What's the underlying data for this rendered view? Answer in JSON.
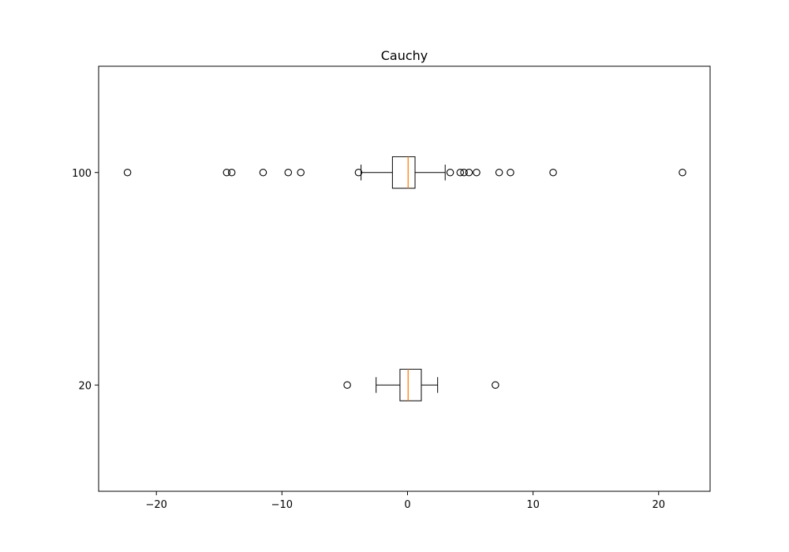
{
  "chart_data": {
    "type": "boxplot",
    "orientation": "horizontal",
    "title": "Cauchy",
    "xlabel": "",
    "ylabel": "",
    "xlim": [
      -24.6,
      24.1
    ],
    "x_ticks": [
      -20,
      -10,
      0,
      10,
      20
    ],
    "x_tick_labels": [
      "−20",
      "−10",
      "0",
      "10",
      "20"
    ],
    "grid": false,
    "colors": {
      "box": "#000000",
      "median": "#ff7f0e",
      "flier": "#000000"
    },
    "boxes": [
      {
        "category": "20",
        "whisker_low": -2.5,
        "q1": -0.6,
        "median": 0.05,
        "q3": 1.1,
        "whisker_high": 2.4,
        "fliers": [
          -4.8,
          7.0
        ]
      },
      {
        "category": "100",
        "whisker_low": -3.7,
        "q1": -1.2,
        "median": 0.05,
        "q3": 0.6,
        "whisker_high": 3.0,
        "fliers": [
          -22.3,
          -14.4,
          -14.0,
          -11.5,
          -9.5,
          -8.5,
          -3.9,
          3.4,
          4.2,
          4.5,
          4.9,
          5.5,
          7.3,
          8.2,
          11.6,
          21.9
        ]
      }
    ]
  }
}
